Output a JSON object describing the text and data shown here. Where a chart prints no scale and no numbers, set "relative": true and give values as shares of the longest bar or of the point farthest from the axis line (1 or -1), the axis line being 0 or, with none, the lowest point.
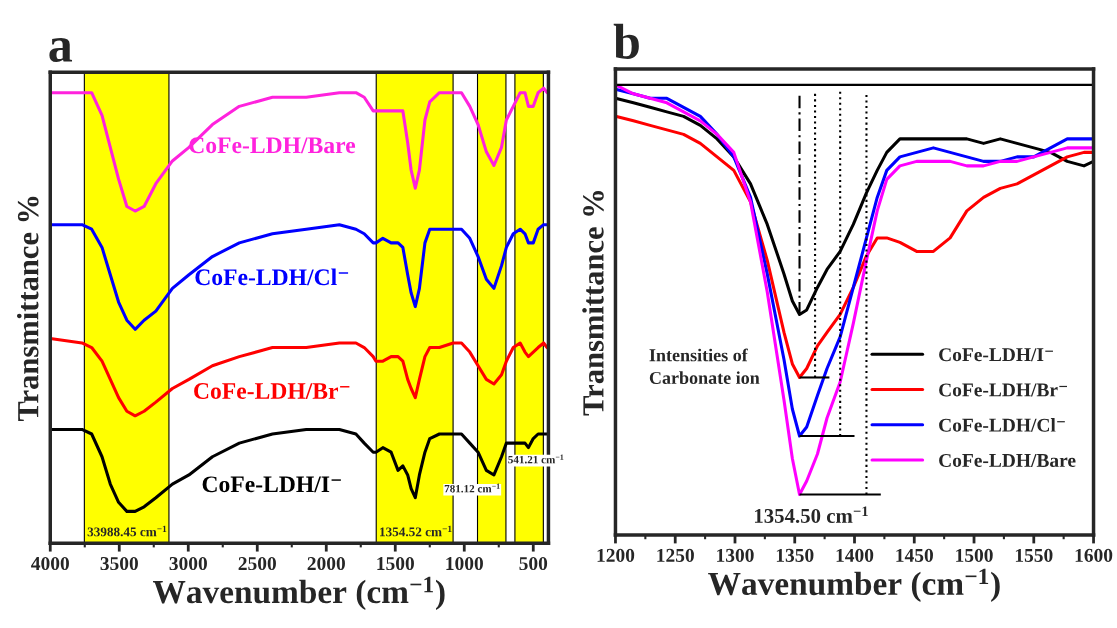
{
  "chart_data": [
    {
      "type": "line",
      "title": "a",
      "xlabel": "Wavenumber (cm$^{−1}$)",
      "ylabel": "Transmittance %",
      "relative": true,
      "tick_labels": "x",
      "legend": false,
      "xlim": [
        4000,
        390
      ],
      "xticks": [
        4000,
        3500,
        3000,
        2500,
        2000,
        1500,
        1000,
        500
      ],
      "x": [
        4000,
        3770,
        3700,
        3625,
        3565,
        3505,
        3445,
        3385,
        3320,
        3235,
        3115,
        2995,
        2825,
        2630,
        2390,
        2145,
        1905,
        1785,
        1725,
        1660,
        1640,
        1590,
        1530,
        1480,
        1445,
        1410,
        1385,
        1355,
        1325,
        1285,
        1250,
        1180,
        1080,
        1020,
        960,
        900,
        840,
        785,
        730,
        695,
        645,
        595,
        560,
        535,
        500,
        465,
        425,
        400
      ],
      "series": [
        {
          "name": "CoFe-LDH/Bare",
          "color": "#ff22dd",
          "values": [
            0.99,
            0.99,
            0.99,
            0.94,
            0.87,
            0.8,
            0.74,
            0.73,
            0.74,
            0.79,
            0.84,
            0.87,
            0.92,
            0.96,
            0.98,
            0.98,
            0.99,
            0.99,
            0.98,
            0.95,
            0.95,
            0.95,
            0.95,
            0.95,
            0.95,
            0.88,
            0.82,
            0.78,
            0.82,
            0.93,
            0.97,
            0.99,
            0.99,
            0.99,
            0.96,
            0.92,
            0.86,
            0.83,
            0.87,
            0.93,
            0.96,
            0.99,
            0.99,
            0.96,
            0.96,
            0.99,
            1.0,
            0.99
          ]
        },
        {
          "name": "CoFe-LDH/Cl⁻",
          "color": "#0000ff",
          "values": [
            0.7,
            0.7,
            0.69,
            0.65,
            0.59,
            0.53,
            0.49,
            0.47,
            0.49,
            0.51,
            0.56,
            0.59,
            0.63,
            0.66,
            0.68,
            0.69,
            0.7,
            0.69,
            0.68,
            0.66,
            0.66,
            0.67,
            0.66,
            0.66,
            0.65,
            0.59,
            0.55,
            0.52,
            0.56,
            0.66,
            0.69,
            0.69,
            0.69,
            0.69,
            0.67,
            0.63,
            0.58,
            0.56,
            0.61,
            0.65,
            0.68,
            0.69,
            0.68,
            0.66,
            0.66,
            0.69,
            0.7,
            0.7
          ]
        },
        {
          "name": "CoFe-LDH/Br⁻",
          "color": "#ff0000",
          "values": [
            0.45,
            0.44,
            0.43,
            0.4,
            0.36,
            0.32,
            0.29,
            0.28,
            0.29,
            0.31,
            0.34,
            0.36,
            0.39,
            0.41,
            0.43,
            0.43,
            0.44,
            0.44,
            0.43,
            0.41,
            0.4,
            0.4,
            0.41,
            0.41,
            0.4,
            0.36,
            0.34,
            0.32,
            0.36,
            0.41,
            0.43,
            0.43,
            0.44,
            0.44,
            0.42,
            0.39,
            0.36,
            0.35,
            0.37,
            0.4,
            0.43,
            0.44,
            0.42,
            0.41,
            0.42,
            0.43,
            0.44,
            0.43
          ]
        },
        {
          "name": "CoFe-LDH/I⁻",
          "color": "#000000",
          "values": [
            0.25,
            0.25,
            0.24,
            0.19,
            0.13,
            0.09,
            0.07,
            0.07,
            0.08,
            0.1,
            0.13,
            0.15,
            0.19,
            0.22,
            0.24,
            0.25,
            0.25,
            0.24,
            0.22,
            0.2,
            0.2,
            0.21,
            0.2,
            0.16,
            0.17,
            0.15,
            0.12,
            0.1,
            0.15,
            0.2,
            0.23,
            0.24,
            0.24,
            0.24,
            0.22,
            0.2,
            0.16,
            0.15,
            0.19,
            0.22,
            0.22,
            0.22,
            0.22,
            0.21,
            0.23,
            0.24,
            0.24,
            0.24
          ]
        }
      ],
      "bands": [
        {
          "axis": "x",
          "from": 3753,
          "to": 3140,
          "color": "#ffff00",
          "label": "33988.45 cm$^{−1}$"
        },
        {
          "axis": "x",
          "from": 1638,
          "to": 1081,
          "color": "#ffff00",
          "label": "1354.52 cm$^{−1}$"
        },
        {
          "axis": "x",
          "from": 904,
          "to": 698,
          "color": "#ffff00"
        },
        {
          "axis": "x",
          "from": 633,
          "to": 427,
          "color": "#ffff00"
        }
      ],
      "annotations": [
        {
          "text": "781.12 cm$^{−1}$",
          "x": 781.12,
          "y": 0.15
        },
        {
          "text": "541.21 cm$^{−1}$",
          "x": 541.21,
          "y": 0.22
        }
      ]
    },
    {
      "type": "line",
      "title": "b",
      "xlabel": "Wavenumber (cm$^{−1}$)",
      "ylabel": "Transmittance %",
      "relative": true,
      "tick_labels": "x",
      "legend": "bottom right",
      "xlim": [
        1200,
        1600
      ],
      "xticks": [
        1200,
        1250,
        1300,
        1350,
        1400,
        1450,
        1500,
        1550,
        1600
      ],
      "x": [
        1200,
        1215,
        1229,
        1243,
        1257,
        1271,
        1285,
        1299,
        1313,
        1327,
        1341,
        1348,
        1354,
        1360,
        1369,
        1377,
        1388,
        1399,
        1410,
        1419,
        1427,
        1438,
        1452,
        1466,
        1480,
        1494,
        1508,
        1522,
        1536,
        1550,
        1564,
        1578,
        1592,
        1600
      ],
      "series": [
        {
          "name": "CoFe-LDH/I⁻",
          "color": "#000000",
          "values": [
            0.97,
            0.96,
            0.95,
            0.94,
            0.93,
            0.91,
            0.88,
            0.84,
            0.78,
            0.69,
            0.58,
            0.52,
            0.49,
            0.5,
            0.55,
            0.59,
            0.63,
            0.69,
            0.76,
            0.81,
            0.85,
            0.88,
            0.88,
            0.88,
            0.88,
            0.88,
            0.87,
            0.88,
            0.87,
            0.86,
            0.85,
            0.83,
            0.82,
            0.83
          ]
        },
        {
          "name": "CoFe-LDH/Br⁻",
          "color": "#ff0000",
          "values": [
            0.93,
            0.92,
            0.91,
            0.9,
            0.89,
            0.87,
            0.84,
            0.81,
            0.74,
            0.61,
            0.45,
            0.38,
            0.35,
            0.37,
            0.42,
            0.45,
            0.49,
            0.55,
            0.62,
            0.66,
            0.66,
            0.65,
            0.63,
            0.63,
            0.66,
            0.72,
            0.75,
            0.77,
            0.78,
            0.8,
            0.82,
            0.84,
            0.85,
            0.85
          ]
        },
        {
          "name": "CoFe-LDH/Cl⁻",
          "color": "#0000ff",
          "values": [
            0.99,
            0.98,
            0.97,
            0.97,
            0.95,
            0.93,
            0.89,
            0.84,
            0.75,
            0.58,
            0.39,
            0.28,
            0.22,
            0.24,
            0.31,
            0.37,
            0.44,
            0.55,
            0.66,
            0.75,
            0.81,
            0.84,
            0.85,
            0.86,
            0.85,
            0.84,
            0.83,
            0.83,
            0.84,
            0.84,
            0.86,
            0.88,
            0.88,
            0.88
          ]
        },
        {
          "name": "CoFe-LDH/Bare",
          "color": "#ff00ff",
          "values": [
            1.0,
            0.98,
            0.97,
            0.96,
            0.94,
            0.92,
            0.89,
            0.85,
            0.74,
            0.54,
            0.3,
            0.17,
            0.09,
            0.12,
            0.18,
            0.26,
            0.34,
            0.47,
            0.61,
            0.72,
            0.79,
            0.82,
            0.83,
            0.83,
            0.83,
            0.82,
            0.82,
            0.83,
            0.83,
            0.84,
            0.85,
            0.86,
            0.86,
            0.86
          ]
        }
      ],
      "ref_lines": [
        {
          "axis": "x",
          "value": 1354,
          "line_style": "dashed"
        },
        {
          "axis": "x",
          "value": 1367,
          "line_style": "dotted"
        },
        {
          "axis": "x",
          "value": 1388,
          "line_style": "dotted"
        },
        {
          "axis": "x",
          "value": 1410,
          "line_style": "dotted"
        },
        {
          "axis": "y",
          "value": 1.0,
          "line_style": "solid"
        }
      ],
      "annotations": [
        "Intensities of\nCarbonate ion",
        {
          "text": "1354.50 cm$^{−1}$",
          "x": 1354.5,
          "y": 0.09
        }
      ]
    }
  ]
}
